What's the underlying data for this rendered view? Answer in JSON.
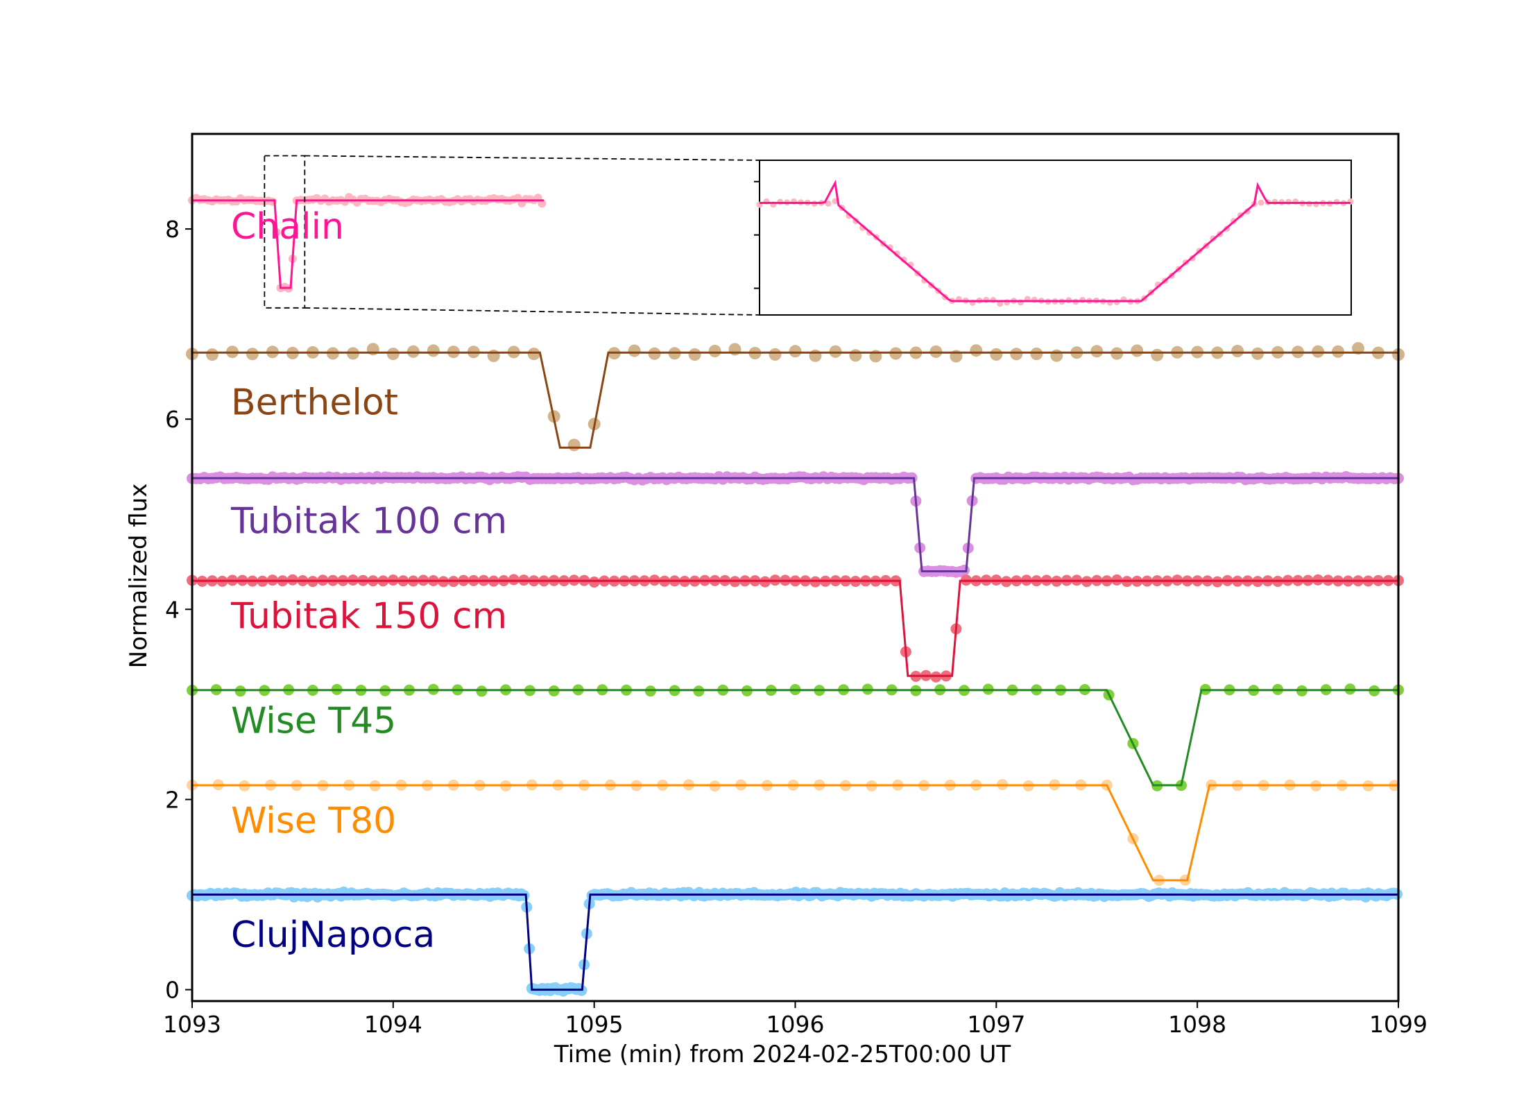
{
  "chart_data": {
    "type": "line",
    "xlabel": "Time (min) from 2024-02-25T00:00 UT",
    "ylabel": "Normalized flux",
    "xlim": [
      1093,
      1099
    ],
    "ylim": [
      -0.12,
      9.0
    ],
    "xticks": [
      1093,
      1094,
      1095,
      1096,
      1097,
      1098,
      1099
    ],
    "yticks": [
      0,
      2,
      4,
      6,
      8
    ],
    "grid": false,
    "series": [
      {
        "name": "Chalin",
        "line_color": "#ff1493",
        "point_color": "#ffb6c1",
        "baseline": 8.3,
        "depth": 0.92,
        "point_step": 0.02,
        "point_size": 6,
        "noise": 0.045,
        "x_start": 1093.0,
        "x_end": 1094.75,
        "ingress": [
          1093.41,
          1093.44
        ],
        "egress": [
          1093.49,
          1093.52
        ]
      },
      {
        "name": "Berthelot",
        "line_color": "#8b4513",
        "point_color": "#d2b48c",
        "baseline": 6.7,
        "depth": 1.0,
        "point_step": 0.1,
        "point_size": 9,
        "noise": 0.05,
        "x_start": 1093.0,
        "x_end": 1099.0,
        "ingress": [
          1094.73,
          1094.83
        ],
        "egress": [
          1094.98,
          1095.07
        ]
      },
      {
        "name": "Tubitak 100 cm",
        "line_color": "#663399",
        "point_color": "#da8fe0",
        "baseline": 5.38,
        "depth": 0.98,
        "point_step": 0.02,
        "point_size": 8,
        "noise": 0.02,
        "x_start": 1093.0,
        "x_end": 1099.0,
        "ingress": [
          1096.59,
          1096.63
        ],
        "egress": [
          1096.85,
          1096.89
        ]
      },
      {
        "name": "Tubitak 150 cm",
        "line_color": "#dc143c",
        "point_color": "#f06c7c",
        "baseline": 4.3,
        "depth": 1.0,
        "point_step": 0.05,
        "point_size": 8,
        "noise": 0.015,
        "x_start": 1093.0,
        "x_end": 1099.0,
        "ingress": [
          1096.52,
          1096.56
        ],
        "egress": [
          1096.78,
          1096.82
        ]
      },
      {
        "name": "Wise T45",
        "line_color": "#228b22",
        "point_color": "#7fcf3a",
        "baseline": 3.15,
        "depth": 1.0,
        "point_step": 0.12,
        "point_size": 8,
        "noise": 0.015,
        "x_start": 1093.0,
        "x_end": 1099.0,
        "ingress": [
          1097.55,
          1097.78
        ],
        "egress": [
          1097.92,
          1098.02
        ]
      },
      {
        "name": "Wise T80",
        "line_color": "#ff8c00",
        "point_color": "#ffd39b",
        "baseline": 2.15,
        "depth": 1.0,
        "point_step": 0.13,
        "point_size": 8,
        "noise": 0.01,
        "x_start": 1093.0,
        "x_end": 1099.0,
        "ingress": [
          1097.55,
          1097.78
        ],
        "egress": [
          1097.95,
          1098.06
        ]
      },
      {
        "name": "ClujNapoca",
        "line_color": "#000080",
        "point_color": "#87cefa",
        "baseline": 1.0,
        "depth": 1.0,
        "point_step": 0.013,
        "point_size": 8,
        "noise": 0.03,
        "x_start": 1093.0,
        "x_end": 1099.0,
        "ingress": [
          1094.66,
          1094.69
        ],
        "egress": [
          1094.94,
          1094.98
        ]
      }
    ],
    "inset": {
      "series": "Chalin",
      "x_range": [
        1093.36,
        1093.56
      ],
      "y_range": [
        7.17,
        8.77
      ],
      "inset_x_range": [
        1093.39,
        1093.545
      ],
      "yticks": [
        7.5,
        8.0,
        8.5
      ]
    }
  }
}
